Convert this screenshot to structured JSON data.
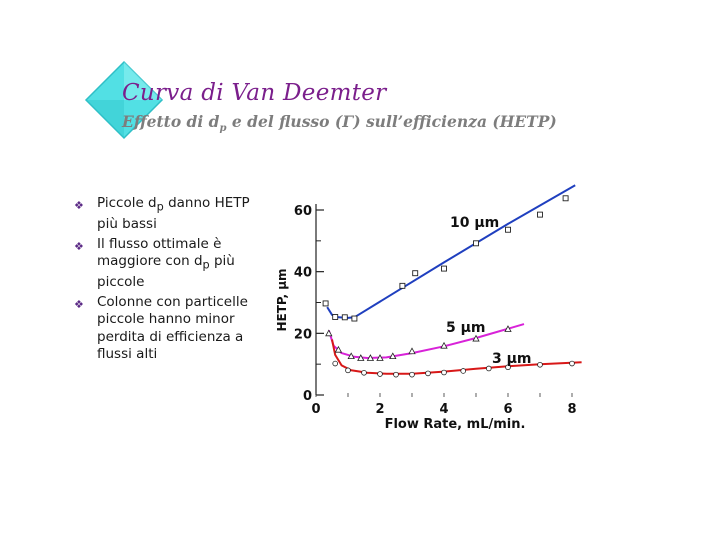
{
  "slide": {
    "title": "Curva di Van Deemter",
    "subtitle_parts": [
      "Effetto di d",
      "p",
      " e del flusso (Γ) sull’efficienza (HETP)"
    ],
    "accent_color": "#7b1f8c",
    "diamond_color": "#52e0e4",
    "bullet_icon": "diamond-bullet-icon"
  },
  "bullets": [
    {
      "parts": [
        "Piccole d",
        "p",
        " danno  HETP più bassi"
      ]
    },
    {
      "parts": [
        "Il flusso ottimale è maggiore con d",
        "p",
        " più piccole"
      ]
    },
    {
      "parts": [
        "Colonne con particelle piccole hanno minor perdita di efficienza a flussi alti",
        "",
        ""
      ]
    }
  ],
  "chart_data": {
    "type": "scatter",
    "xlabel": "Flow Rate, mL/min.",
    "ylabel": "HETP,  μm",
    "xlim": [
      0,
      8
    ],
    "ylim": [
      0,
      60
    ],
    "x_ticks": [
      "0",
      "2",
      "4",
      "6",
      "8"
    ],
    "y_ticks": [
      "0",
      "20",
      "40",
      "60"
    ],
    "series": [
      {
        "name": "10 μm",
        "color": "#1f3fbf",
        "points": [
          [
            0.3,
            29.7
          ],
          [
            0.6,
            25.3
          ],
          [
            0.9,
            25.2
          ],
          [
            1.2,
            24.8
          ],
          [
            2.7,
            35.4
          ],
          [
            3.1,
            39.5
          ],
          [
            4.0,
            41.0
          ],
          [
            5.0,
            49.2
          ],
          [
            6.0,
            53.6
          ],
          [
            7.0,
            58.5
          ],
          [
            7.8,
            63.8
          ]
        ],
        "curve": [
          [
            0.35,
            28.5
          ],
          [
            0.5,
            26.0
          ],
          [
            0.7,
            25.2
          ],
          [
            1.0,
            25.0
          ],
          [
            1.2,
            25.2
          ],
          [
            2.0,
            30.3
          ],
          [
            4.0,
            43.0
          ],
          [
            6.0,
            55.5
          ],
          [
            8.1,
            68.0
          ]
        ]
      },
      {
        "name": "5 μm",
        "color": "#d822d8",
        "points": [
          [
            0.4,
            20.0
          ],
          [
            0.7,
            14.7
          ],
          [
            1.1,
            12.6
          ],
          [
            1.4,
            12.0
          ],
          [
            1.7,
            12.0
          ],
          [
            2.0,
            12.0
          ],
          [
            2.4,
            12.6
          ],
          [
            3.0,
            14.2
          ],
          [
            4.0,
            16.0
          ],
          [
            5.0,
            18.3
          ],
          [
            6.0,
            21.4
          ]
        ],
        "curve": [
          [
            0.4,
            21.0
          ],
          [
            0.55,
            16.0
          ],
          [
            0.8,
            13.6
          ],
          [
            1.2,
            12.4
          ],
          [
            1.6,
            12.0
          ],
          [
            2.2,
            12.2
          ],
          [
            3.0,
            13.6
          ],
          [
            4.0,
            15.8
          ],
          [
            5.0,
            18.5
          ],
          [
            6.5,
            23.0
          ]
        ]
      },
      {
        "name": "3 μm",
        "color": "#d81818",
        "points": [
          [
            0.6,
            10.2
          ],
          [
            1.0,
            8.0
          ],
          [
            1.5,
            7.2
          ],
          [
            2.0,
            6.8
          ],
          [
            2.5,
            6.6
          ],
          [
            3.0,
            6.6
          ],
          [
            3.5,
            7.0
          ],
          [
            4.0,
            7.3
          ],
          [
            4.6,
            7.8
          ],
          [
            5.4,
            8.6
          ],
          [
            6.0,
            9.0
          ],
          [
            7.0,
            9.8
          ],
          [
            8.0,
            10.2
          ]
        ],
        "curve": [
          [
            0.5,
            18.0
          ],
          [
            0.6,
            13.0
          ],
          [
            0.8,
            9.6
          ],
          [
            1.1,
            8.0
          ],
          [
            1.6,
            7.2
          ],
          [
            2.2,
            6.9
          ],
          [
            3.0,
            6.9
          ],
          [
            4.0,
            7.6
          ],
          [
            5.0,
            8.5
          ],
          [
            6.0,
            9.3
          ],
          [
            7.0,
            10.0
          ],
          [
            8.3,
            10.6
          ]
        ]
      }
    ]
  }
}
